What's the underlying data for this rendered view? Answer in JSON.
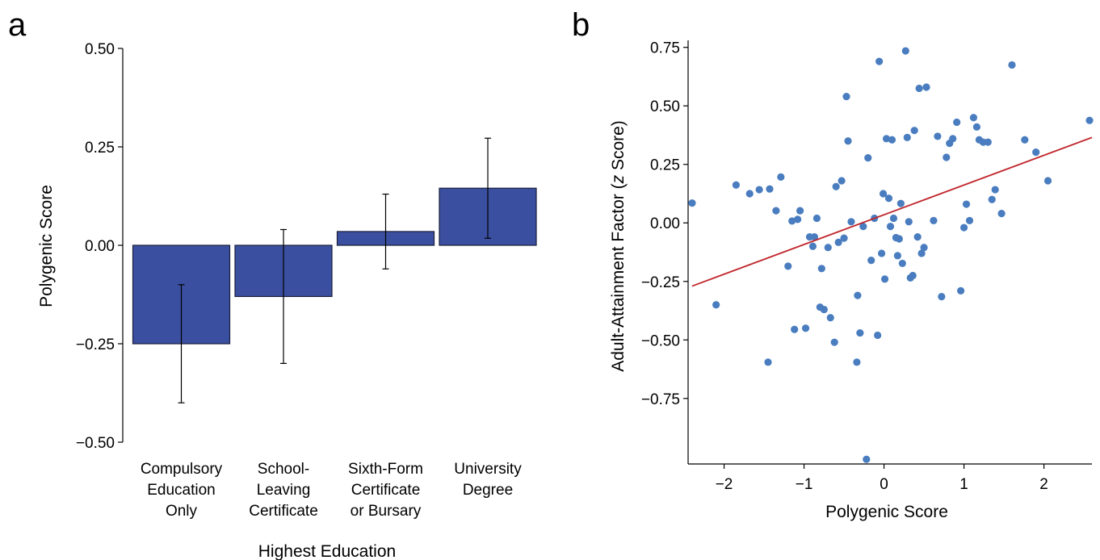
{
  "chart_data": [
    {
      "panel_label": "a",
      "type": "bar",
      "xlabel": "Highest Education",
      "ylabel": "Polygenic Score",
      "ylim": [
        -0.5,
        0.5
      ],
      "yticks": [
        -0.5,
        -0.25,
        0,
        0.25,
        0.5
      ],
      "ytick_labels": [
        "−0.50",
        "−0.25",
        "0.00",
        "0.25",
        "0.50"
      ],
      "categories": [
        [
          "Compulsory",
          "Education",
          "Only"
        ],
        [
          "School-",
          "Leaving",
          "Certificate"
        ],
        [
          "Sixth-Form",
          "Certificate",
          "or Bursary"
        ],
        [
          "University",
          "Degree"
        ]
      ],
      "values": [
        -0.25,
        -0.13,
        0.035,
        0.145
      ],
      "error_low": [
        -0.4,
        -0.3,
        -0.06,
        0.018
      ],
      "error_high": [
        -0.1,
        0.04,
        0.13,
        0.272
      ],
      "color": "#3b4fa0"
    },
    {
      "panel_label": "b",
      "type": "scatter",
      "xlabel": "Polygenic Score",
      "ylabel_parts": [
        "Adult-Attainment Factor (",
        "z",
        " Score)"
      ],
      "xlim": [
        -2.45,
        2.6
      ],
      "ylim": [
        -1.03,
        0.78
      ],
      "xticks": [
        -2,
        -1,
        0,
        1,
        2
      ],
      "xtick_labels": [
        "−2",
        "−1",
        "0",
        "1",
        "2"
      ],
      "yticks": [
        -0.75,
        -0.5,
        -0.25,
        0,
        0.25,
        0.5,
        0.75
      ],
      "ytick_labels": [
        "−0.75",
        "−0.50",
        "−0.25",
        "0.00",
        "0.25",
        "0.50",
        "0.75"
      ],
      "point_color": "#4a7dbf",
      "line_color": "#c1272d",
      "fit_line": {
        "x": [
          -2.4,
          2.6
        ],
        "y": [
          -0.27,
          0.365
        ]
      },
      "points": [
        [
          -2.4,
          0.085
        ],
        [
          -2.1,
          -0.35
        ],
        [
          -1.85,
          0.162
        ],
        [
          -1.68,
          0.125
        ],
        [
          -1.56,
          0.142
        ],
        [
          -1.43,
          0.145
        ],
        [
          -1.45,
          -0.595
        ],
        [
          -1.35,
          0.052
        ],
        [
          -1.29,
          0.196
        ],
        [
          -1.2,
          -0.185
        ],
        [
          -1.15,
          0.008
        ],
        [
          -1.12,
          -0.455
        ],
        [
          -1.08,
          0.015
        ],
        [
          -1.05,
          0.052
        ],
        [
          -0.98,
          -0.45
        ],
        [
          -0.93,
          -0.06
        ],
        [
          -0.89,
          -0.1
        ],
        [
          -0.87,
          -0.06
        ],
        [
          -0.84,
          0.02
        ],
        [
          -0.8,
          -0.36
        ],
        [
          -0.78,
          -0.195
        ],
        [
          -0.75,
          -0.37
        ],
        [
          -0.7,
          -0.105
        ],
        [
          -0.67,
          -0.405
        ],
        [
          -0.62,
          -0.51
        ],
        [
          -0.6,
          0.155
        ],
        [
          -0.57,
          -0.083
        ],
        [
          -0.53,
          0.18
        ],
        [
          -0.5,
          -0.065
        ],
        [
          -0.47,
          0.54
        ],
        [
          -0.45,
          0.35
        ],
        [
          -0.41,
          0.005
        ],
        [
          -0.34,
          -0.595
        ],
        [
          -0.33,
          -0.31
        ],
        [
          -0.3,
          -0.47
        ],
        [
          -0.26,
          -0.015
        ],
        [
          -0.22,
          -1.01
        ],
        [
          -0.2,
          0.278
        ],
        [
          -0.16,
          -0.16
        ],
        [
          -0.12,
          0.02
        ],
        [
          -0.08,
          -0.48
        ],
        [
          -0.06,
          0.69
        ],
        [
          -0.03,
          -0.13
        ],
        [
          -0.01,
          0.125
        ],
        [
          0.01,
          -0.24
        ],
        [
          0.03,
          0.36
        ],
        [
          0.06,
          0.105
        ],
        [
          0.08,
          -0.015
        ],
        [
          0.1,
          0.355
        ],
        [
          0.12,
          0.02
        ],
        [
          0.15,
          -0.063
        ],
        [
          0.17,
          -0.14
        ],
        [
          0.19,
          -0.068
        ],
        [
          0.21,
          0.083
        ],
        [
          0.23,
          -0.173
        ],
        [
          0.27,
          0.735
        ],
        [
          0.29,
          0.365
        ],
        [
          0.31,
          0.005
        ],
        [
          0.33,
          -0.235
        ],
        [
          0.36,
          -0.225
        ],
        [
          0.38,
          0.395
        ],
        [
          0.42,
          -0.06
        ],
        [
          0.44,
          0.575
        ],
        [
          0.47,
          -0.13
        ],
        [
          0.5,
          -0.105
        ],
        [
          0.53,
          0.58
        ],
        [
          0.62,
          0.01
        ],
        [
          0.67,
          0.37
        ],
        [
          0.72,
          -0.315
        ],
        [
          0.78,
          0.28
        ],
        [
          0.82,
          0.34
        ],
        [
          0.86,
          0.36
        ],
        [
          0.91,
          0.43
        ],
        [
          0.96,
          -0.29
        ],
        [
          1.0,
          -0.02
        ],
        [
          1.03,
          0.08
        ],
        [
          1.07,
          0.01
        ],
        [
          1.12,
          0.45
        ],
        [
          1.16,
          0.41
        ],
        [
          1.19,
          0.355
        ],
        [
          1.24,
          0.345
        ],
        [
          1.3,
          0.345
        ],
        [
          1.35,
          0.1
        ],
        [
          1.39,
          0.142
        ],
        [
          1.47,
          0.04
        ],
        [
          1.6,
          0.675
        ],
        [
          1.76,
          0.355
        ],
        [
          1.9,
          0.302
        ],
        [
          2.05,
          0.18
        ],
        [
          2.57,
          0.438
        ]
      ]
    }
  ]
}
